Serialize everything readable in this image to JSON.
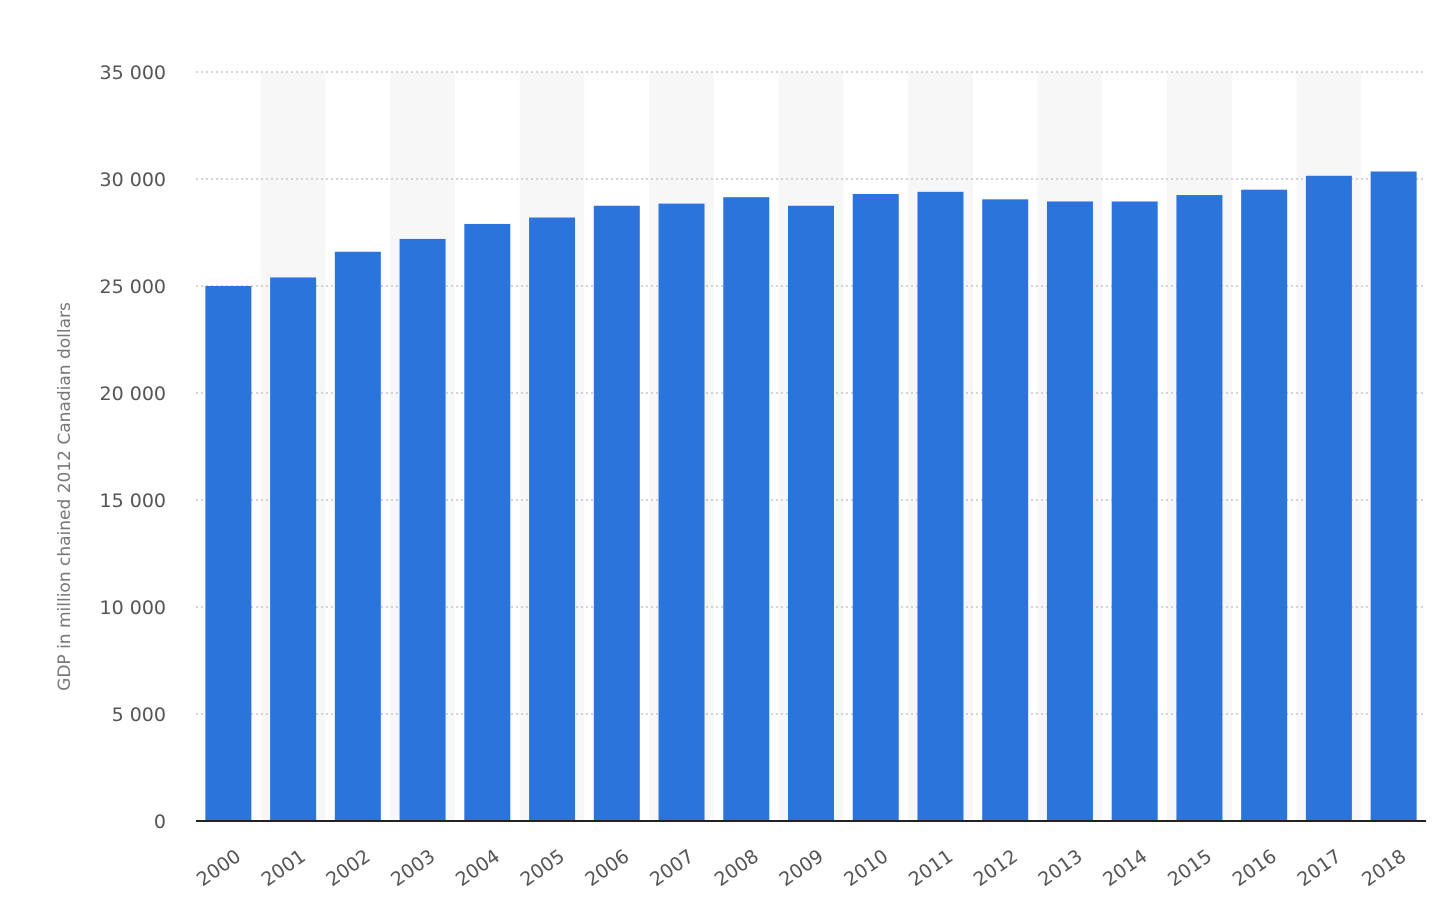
{
  "chart_data": {
    "type": "bar",
    "ylabel": "GDP in million chained 2012 Canadian dollars",
    "xlabel": "",
    "categories": [
      "2000",
      "2001",
      "2002",
      "2003",
      "2004",
      "2005",
      "2006",
      "2007",
      "2008",
      "2009",
      "2010",
      "2011",
      "2012",
      "2013",
      "2014",
      "2015",
      "2016",
      "2017",
      "2018"
    ],
    "values": [
      25000,
      25400,
      26600,
      27200,
      27900,
      28200,
      28750,
      28850,
      29150,
      28750,
      29300,
      29400,
      29050,
      28950,
      28950,
      29250,
      29500,
      30150,
      30350
    ],
    "ylim": [
      0,
      35000
    ],
    "yticks": [
      0,
      5000,
      10000,
      15000,
      20000,
      25000,
      30000,
      35000
    ],
    "ytick_labels": [
      "0",
      "5 000",
      "10 000",
      "15 000",
      "20 000",
      "25 000",
      "30 000",
      "35 000"
    ],
    "grid": true,
    "legend": "none",
    "colors": {
      "bar": "#2a74dc",
      "grid": "#bbbbbb",
      "band": "#f7f7f7",
      "axis": "#222222"
    }
  }
}
